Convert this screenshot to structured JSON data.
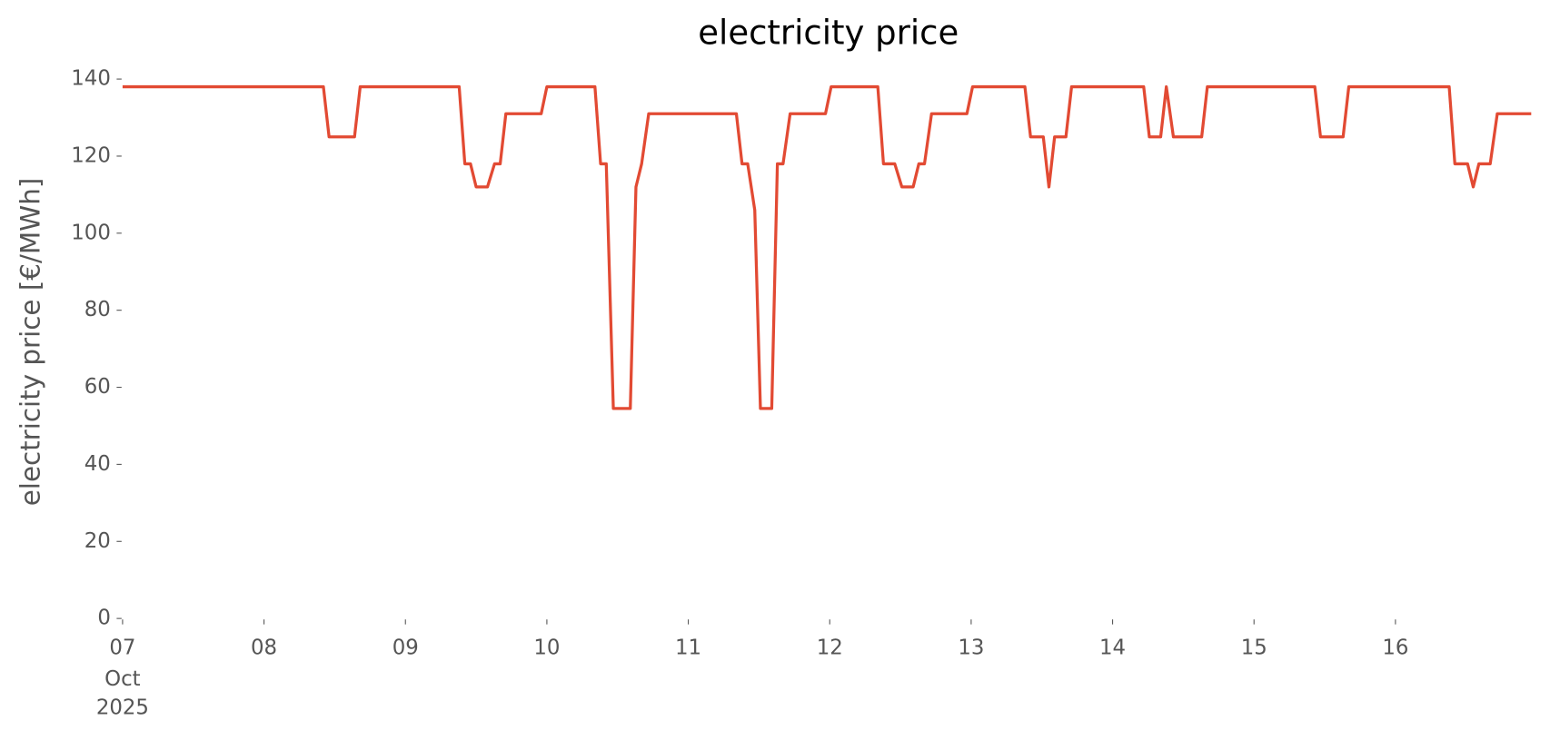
{
  "chart_data": {
    "type": "line",
    "title": "electricity price",
    "ylabel": "electricity price [€/MWh]",
    "x_month": "Oct",
    "x_year": "2025",
    "xlim": [
      7,
      16.96
    ],
    "xticks": [
      {
        "value": 7,
        "label": "07"
      },
      {
        "value": 8,
        "label": "08"
      },
      {
        "value": 9,
        "label": "09"
      },
      10,
      11,
      12,
      13,
      14,
      15,
      16
    ],
    "ylim": [
      0,
      140
    ],
    "yticks": [
      0,
      20,
      40,
      60,
      80,
      100,
      120,
      140
    ],
    "grid": false,
    "series": [
      {
        "name": "electricity price",
        "color": "#e24a33",
        "x": [
          7,
          8.42,
          8.46,
          8.64,
          8.68,
          9.38,
          9.42,
          9.46,
          9.5,
          9.58,
          9.63,
          9.67,
          9.71,
          9.96,
          10.0,
          10.34,
          10.38,
          10.42,
          10.47,
          10.59,
          10.63,
          10.67,
          10.72,
          11.34,
          11.38,
          11.42,
          11.47,
          11.51,
          11.59,
          11.63,
          11.67,
          11.72,
          11.97,
          12.01,
          12.34,
          12.38,
          12.46,
          12.51,
          12.59,
          12.63,
          12.67,
          12.72,
          12.97,
          13.01,
          13.38,
          13.42,
          13.51,
          13.55,
          13.59,
          13.67,
          13.71,
          14.22,
          14.26,
          14.34,
          14.38,
          14.43,
          14.63,
          14.67,
          15.43,
          15.47,
          15.63,
          15.67,
          16.38,
          16.42,
          16.51,
          16.55,
          16.59,
          16.67,
          16.72,
          16.96
        ],
        "values": [
          138,
          138,
          125,
          125,
          138,
          138,
          118,
          118,
          112,
          112,
          118,
          118,
          131,
          131,
          138,
          138,
          118,
          118,
          54.5,
          54.5,
          112,
          118,
          131,
          131,
          118,
          118,
          106,
          54.5,
          54.5,
          118,
          118,
          131,
          131,
          138,
          138,
          118,
          118,
          112,
          112,
          118,
          118,
          131,
          131,
          138,
          138,
          125,
          125,
          112,
          125,
          125,
          138,
          138,
          125,
          125,
          138,
          125,
          125,
          138,
          138,
          125,
          125,
          138,
          138,
          118,
          118,
          112,
          118,
          118,
          131,
          131
        ]
      }
    ]
  }
}
